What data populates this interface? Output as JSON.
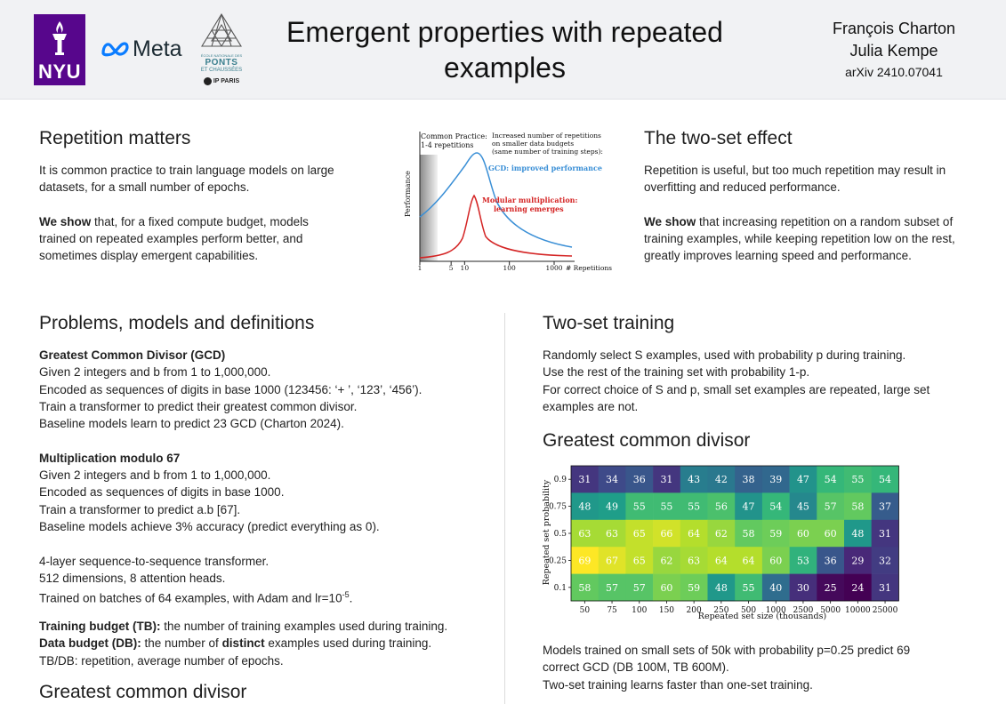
{
  "header": {
    "logos": {
      "nyu": "NYU",
      "meta": "Meta",
      "ponts": {
        "school_line": "ÉCOLE NATIONALE DES",
        "name": "PONTS",
        "sub": "ET CHAUSSÉES",
        "ip": "IP PARIS"
      }
    },
    "title_line1": "Emergent properties with repeated",
    "title_line2": "examples",
    "authors": [
      "François Charton",
      "Julia Kempe"
    ],
    "arxiv": "arXiv 2410.07041"
  },
  "repetition": {
    "title": "Repetition matters",
    "p1_l1": "It is common practice to train language models on large",
    "p1_l2": "datasets, for a small number of epochs.",
    "p2_bold": "We show",
    "p2_l1_rest": " that, for a fixed compute budget, models",
    "p2_l2": "trained on repeated examples perform better, and",
    "p2_l3": "sometimes display emergent capabilities."
  },
  "schematic": {
    "common_practice_l1": "Common Practice:",
    "common_practice_l2": "1-4 repetitions",
    "increased_l1": "Increased number of repetitions",
    "increased_l2": "on smaller data budgets",
    "increased_l3": "(same number of training steps):",
    "gcd_label": "GCD: improved performance",
    "modmul_l1": "Modular multiplication:",
    "modmul_l2": "learning emerges",
    "ylabel": "Performance",
    "xlabel": "# Repetitions",
    "ticks": [
      "1",
      "5",
      "10",
      "100",
      "1000"
    ],
    "colors": {
      "gcd": "#3a8fd6",
      "modmul": "#d42424"
    }
  },
  "two_set_effect": {
    "title": "The two-set effect",
    "p1_l1": "Repetition is useful, but too much repetition may result in",
    "p1_l2": "overfitting and reduced performance.",
    "p2_bold": "We show",
    "p2_l1_rest": " that increasing repetition on a random subset of",
    "p2_l2": "training examples, while keeping  repetition low on the rest,",
    "p2_l3": "greatly improves learning speed and performance."
  },
  "problems": {
    "title": "Problems, models and definitions",
    "gcd_heading": "Greatest Common Divisor (GCD)",
    "gcd_lines": [
      "Given 2 integers and b from 1 to 1,000,000.",
      "Encoded as sequences of digits in base 1000 (123456: ‘+ ’, ‘123’, ‘456’).",
      "Train a transformer to predict their greatest common divisor.",
      "Baseline models learn to predict 23 GCD (Charton 2024)."
    ],
    "mod_heading": "Multiplication modulo 67",
    "mod_lines": [
      "Given 2 integers and b from 1 to 1,000,000.",
      "Encoded as sequences of digits in base 1000.",
      "Train a transformer to predict a.b [67].",
      "Baseline models achieve 3% accuracy (predict everything as 0)."
    ],
    "model_lines": [
      "4-layer sequence-to-sequence transformer.",
      "512 dimensions, 8 attention heads."
    ],
    "model_lr_pre": "Trained on batches of 64 examples, with Adam and lr=10",
    "model_lr_exp": "-5",
    "model_lr_post": ".",
    "tb_bold": "Training budget (TB):",
    "tb_rest": " the number of training examples used during training.",
    "db_bold": "Data budget (DB):",
    "db_mid": " the number of ",
    "db_bold2": "distinct",
    "db_rest": " examples used during training.",
    "tbdb": "TB/DB: repetition, average number of epochs."
  },
  "gcd_bottom": {
    "title": "Greatest common divisor"
  },
  "two_set": {
    "title": "Two-set training",
    "lines": [
      "Randomly select S examples, used with probability p during training.",
      "Use the rest of the training set with probability 1-p.",
      "For correct choice of S and p, small set examples are repeated, large set",
      "examples are not."
    ]
  },
  "gcd_section": {
    "title": "Greatest common divisor",
    "result_lines": [
      "Models trained on small sets of 50k with probability p=0.25 predict 69",
      "correct GCD (DB 100M, TB 600M).",
      "Two-set training learns faster than one-set training."
    ]
  },
  "chart_data": {
    "type": "heatmap",
    "title": "",
    "xlabel": "Repeated set size (thousands)",
    "ylabel": "Repeated set probability",
    "x": [
      "50",
      "75",
      "100",
      "150",
      "200",
      "250",
      "500",
      "1000",
      "2500",
      "5000",
      "10000",
      "25000"
    ],
    "y": [
      "0.9",
      "0.75",
      "0.5",
      "0.25",
      "0.1"
    ],
    "values": [
      [
        31,
        34,
        36,
        31,
        43,
        42,
        38,
        39,
        47,
        54,
        55,
        54
      ],
      [
        48,
        49,
        55,
        55,
        55,
        56,
        47,
        54,
        45,
        57,
        58,
        37
      ],
      [
        63,
        63,
        65,
        66,
        64,
        62,
        58,
        59,
        60,
        60,
        48,
        31
      ],
      [
        69,
        67,
        65,
        62,
        63,
        64,
        64,
        60,
        53,
        36,
        29,
        32
      ],
      [
        58,
        57,
        57,
        60,
        59,
        48,
        55,
        40,
        30,
        25,
        24,
        31
      ]
    ],
    "colormap": "viridis",
    "range": [
      24,
      69
    ]
  }
}
